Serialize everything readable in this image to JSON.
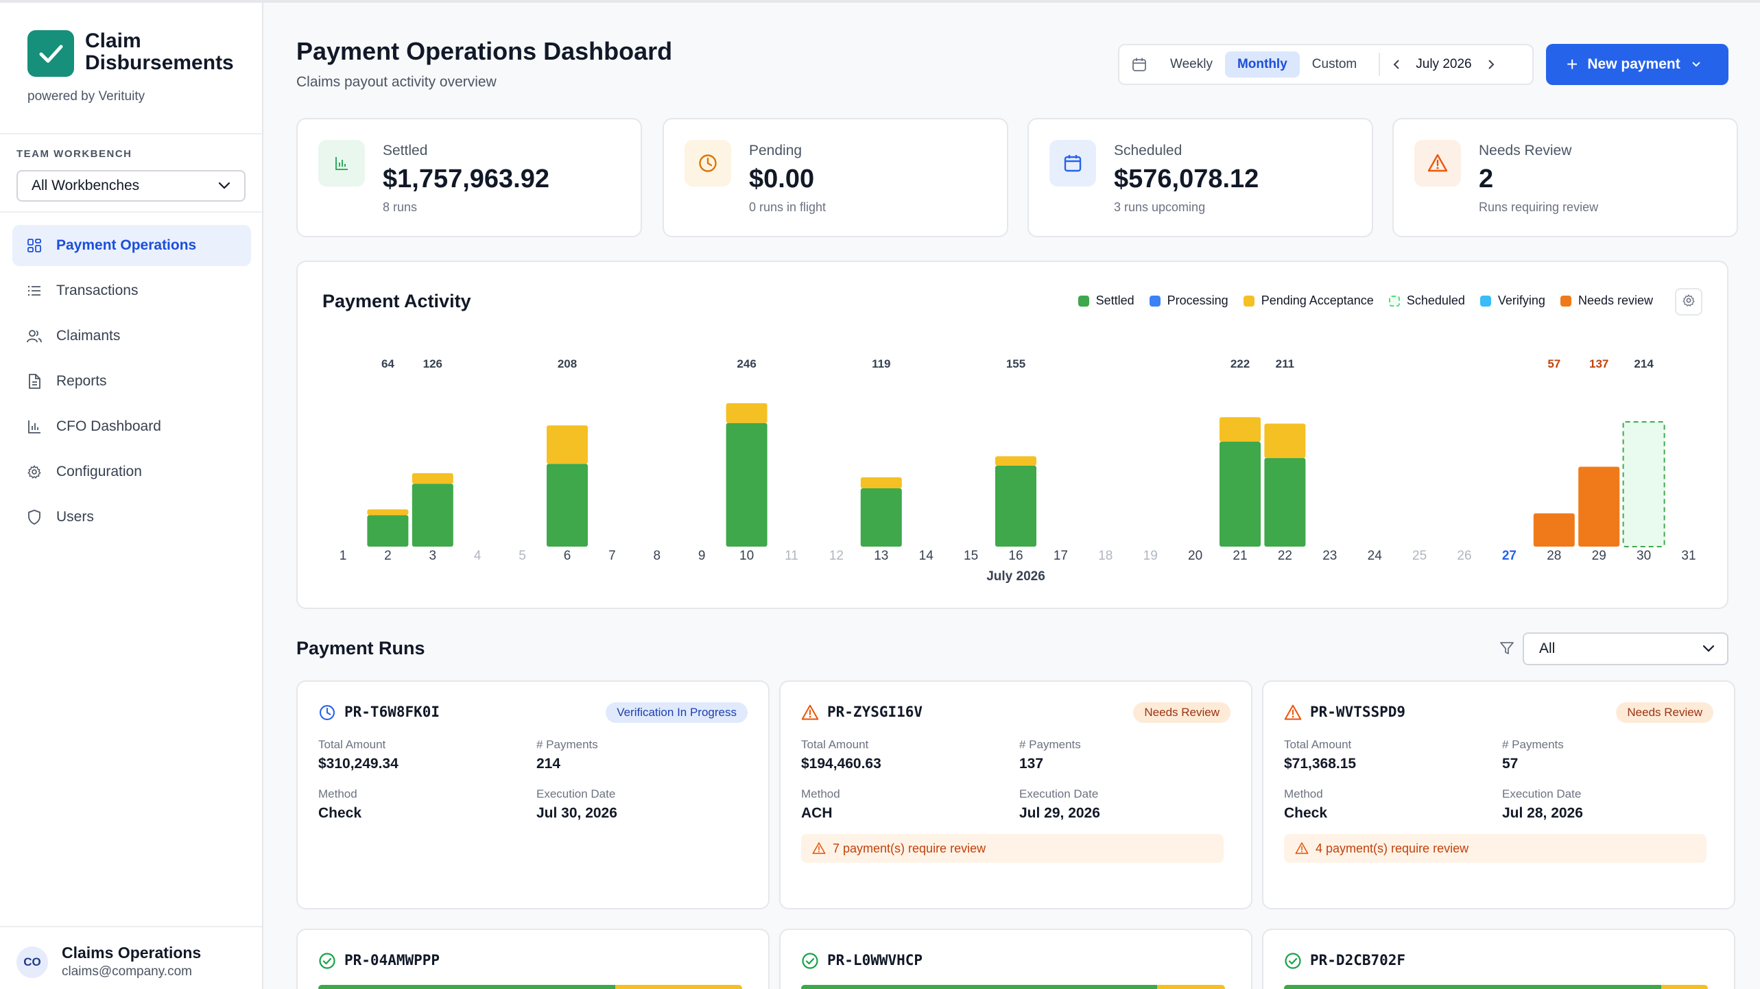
{
  "app": {
    "brand_line1": "Claim",
    "brand_line2": "Disbursements",
    "powered_by": "powered by Verituity"
  },
  "sidebar": {
    "workbench_label": "TEAM WORKBENCH",
    "workbench_value": "All Workbenches",
    "items": [
      {
        "label": "Payment Operations",
        "icon": "grid-icon",
        "active": true
      },
      {
        "label": "Transactions",
        "icon": "list-icon",
        "active": false
      },
      {
        "label": "Claimants",
        "icon": "users-icon",
        "active": false
      },
      {
        "label": "Reports",
        "icon": "document-icon",
        "active": false
      },
      {
        "label": "CFO Dashboard",
        "icon": "bar-chart-icon",
        "active": false
      },
      {
        "label": "Configuration",
        "icon": "gear-icon",
        "active": false
      },
      {
        "label": "Users",
        "icon": "shield-icon",
        "active": false
      }
    ],
    "user": {
      "initials": "CO",
      "name": "Claims Operations",
      "email": "claims@company.com"
    }
  },
  "header": {
    "title": "Payment Operations Dashboard",
    "subtitle": "Claims payout activity overview",
    "period_options": [
      "Weekly",
      "Monthly",
      "Custom"
    ],
    "period_selected": "Monthly",
    "month": "July 2026",
    "new_payment_label": "New payment"
  },
  "stats": [
    {
      "label": "Settled",
      "value": "$1,757,963.92",
      "sub": "8 runs",
      "icon": "bar-chart-icon",
      "color": "#16a34a",
      "bg": "#e9f7ee"
    },
    {
      "label": "Pending",
      "value": "$0.00",
      "sub": "0 runs in flight",
      "icon": "clock-icon",
      "color": "#d97706",
      "bg": "#fdf4e3"
    },
    {
      "label": "Scheduled",
      "value": "$576,078.12",
      "sub": "3 runs upcoming",
      "icon": "calendar-icon",
      "color": "#2563eb",
      "bg": "#e8effc"
    },
    {
      "label": "Needs Review",
      "value": "2",
      "sub": "Runs requiring review",
      "icon": "warning-icon",
      "color": "#ea580c",
      "bg": "#fdf0e6"
    }
  ],
  "activity": {
    "title": "Payment Activity",
    "legend": [
      {
        "label": "Settled",
        "color": "#3ea84b",
        "dashed": false
      },
      {
        "label": "Processing",
        "color": "#3b82f6",
        "dashed": false
      },
      {
        "label": "Pending Acceptance",
        "color": "#f5c023",
        "dashed": false
      },
      {
        "label": "Scheduled",
        "color": "#4ade80",
        "dashed": true
      },
      {
        "label": "Verifying",
        "color": "#38bdf8",
        "dashed": false
      },
      {
        "label": "Needs review",
        "color": "#f07a1a",
        "dashed": false
      }
    ]
  },
  "chart_data": {
    "type": "bar",
    "stacked": true,
    "xlabel": "July 2026",
    "categories": [
      "1",
      "2",
      "3",
      "4",
      "5",
      "6",
      "7",
      "8",
      "9",
      "10",
      "11",
      "12",
      "13",
      "14",
      "15",
      "16",
      "17",
      "18",
      "19",
      "20",
      "21",
      "22",
      "23",
      "24",
      "25",
      "26",
      "27",
      "28",
      "29",
      "30",
      "31"
    ],
    "weekend_days": [
      "4",
      "5",
      "11",
      "12",
      "18",
      "19",
      "25",
      "26"
    ],
    "today": "27",
    "series": [
      {
        "name": "Settled",
        "values": [
          0,
          54,
          108,
          0,
          0,
          142,
          0,
          0,
          0,
          212,
          0,
          0,
          100,
          0,
          0,
          139,
          0,
          0,
          0,
          0,
          180,
          152,
          0,
          0,
          0,
          0,
          0,
          0,
          0,
          0,
          0
        ]
      },
      {
        "name": "Pending Acceptance",
        "values": [
          0,
          10,
          18,
          0,
          0,
          66,
          0,
          0,
          0,
          34,
          0,
          0,
          19,
          0,
          0,
          16,
          0,
          0,
          0,
          0,
          42,
          59,
          0,
          0,
          0,
          0,
          0,
          0,
          0,
          0,
          0
        ]
      },
      {
        "name": "Needs review",
        "values": [
          0,
          0,
          0,
          0,
          0,
          0,
          0,
          0,
          0,
          0,
          0,
          0,
          0,
          0,
          0,
          0,
          0,
          0,
          0,
          0,
          0,
          0,
          0,
          0,
          0,
          0,
          0,
          57,
          137,
          0,
          0
        ]
      },
      {
        "name": "Scheduled",
        "values": [
          0,
          0,
          0,
          0,
          0,
          0,
          0,
          0,
          0,
          0,
          0,
          0,
          0,
          0,
          0,
          0,
          0,
          0,
          0,
          0,
          0,
          0,
          0,
          0,
          0,
          0,
          0,
          0,
          0,
          214,
          0
        ]
      }
    ],
    "totals": [
      null,
      64,
      126,
      null,
      null,
      208,
      null,
      null,
      null,
      246,
      null,
      null,
      119,
      null,
      null,
      155,
      null,
      null,
      null,
      null,
      222,
      211,
      null,
      null,
      null,
      null,
      null,
      57,
      137,
      214,
      null
    ],
    "total_colors": {
      "28": "#c2410c",
      "29": "#c2410c"
    },
    "ylim": [
      0,
      250
    ]
  },
  "runs": {
    "title": "Payment Runs",
    "filter_value": "All",
    "labels": {
      "total": "Total Amount",
      "payments": "# Payments",
      "method": "Method",
      "date": "Execution Date"
    },
    "cards": [
      {
        "id": "PR-T6W8FK0I",
        "status": "Verification In Progress",
        "status_style": "blue",
        "icon": "clock-icon",
        "icon_color": "#2563eb",
        "total": "$310,249.34",
        "payments": "214",
        "method": "Check",
        "date": "Jul 30, 2026",
        "warning": ""
      },
      {
        "id": "PR-ZYSGI16V",
        "status": "Needs Review",
        "status_style": "orange",
        "icon": "warning-icon",
        "icon_color": "#ea580c",
        "total": "$194,460.63",
        "payments": "137",
        "method": "ACH",
        "date": "Jul 29, 2026",
        "warning": "7 payment(s) require review"
      },
      {
        "id": "PR-WVTSSPD9",
        "status": "Needs Review",
        "status_style": "orange",
        "icon": "warning-icon",
        "icon_color": "#ea580c",
        "total": "$71,368.15",
        "payments": "57",
        "method": "Check",
        "date": "Jul 28, 2026",
        "warning": "4 payment(s) require review"
      },
      {
        "id": "PR-04AMWPPP",
        "icon": "check-circle-icon",
        "icon_color": "#16a34a",
        "settled_fraction": 0.7
      },
      {
        "id": "PR-L0WWVHCP",
        "icon": "check-circle-icon",
        "icon_color": "#16a34a",
        "settled_fraction": 0.84
      },
      {
        "id": "PR-D2CB702F",
        "icon": "check-circle-icon",
        "icon_color": "#16a34a",
        "settled_fraction": 0.89
      }
    ]
  }
}
